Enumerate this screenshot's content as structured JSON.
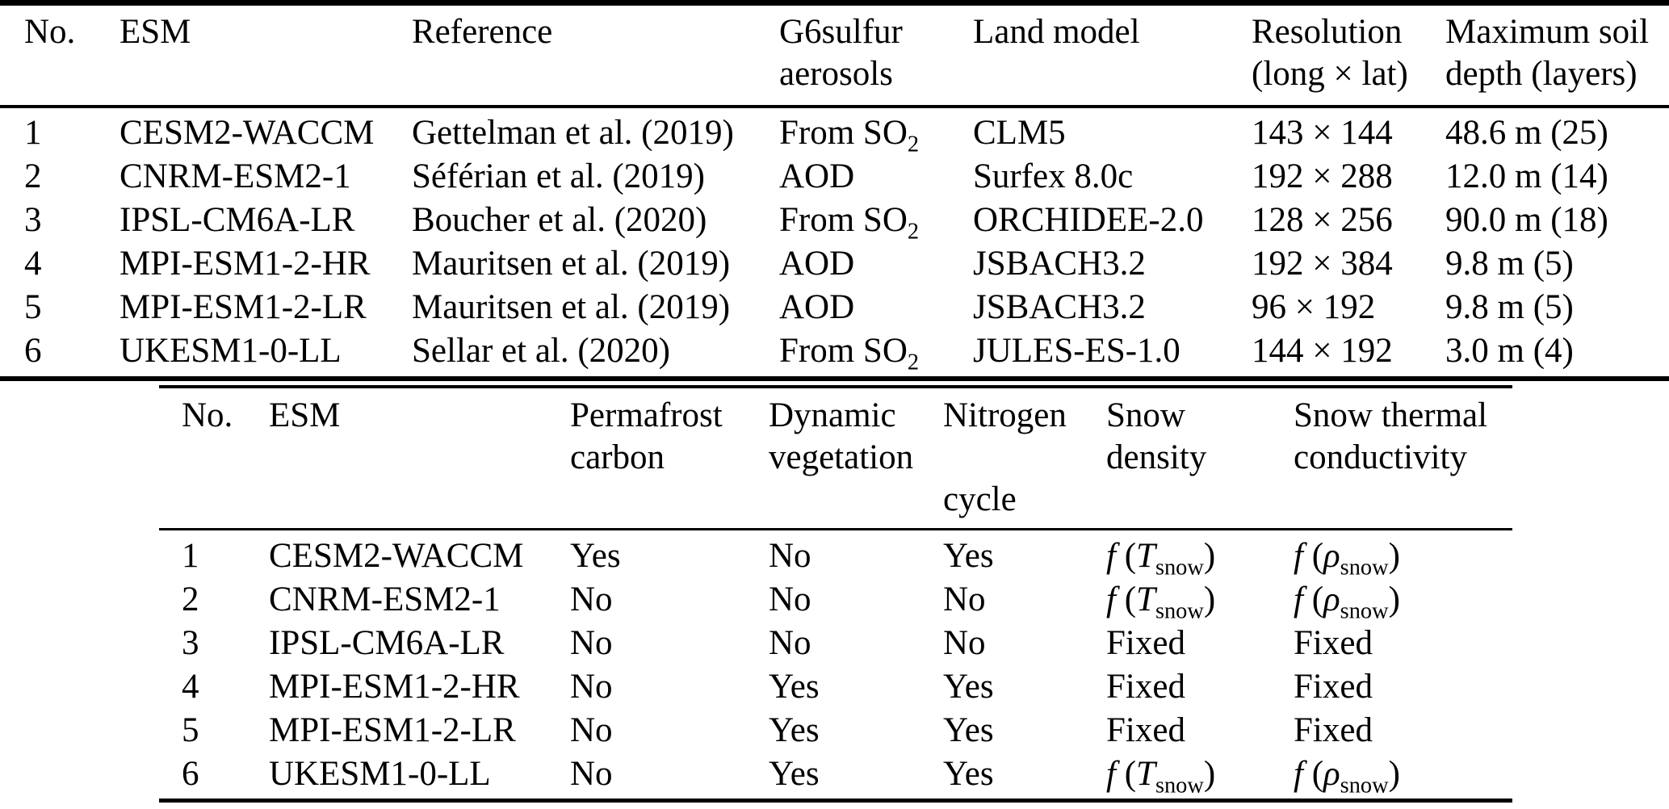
{
  "table1": {
    "col_headers": {
      "no": "No.",
      "esm": "ESM",
      "reference": "Reference",
      "g6sulfur_line1": "G6sulfur",
      "g6sulfur_line2": "aerosols",
      "land_model": "Land model",
      "resolution_line1": "Resolution",
      "resolution_line2": "(long × lat)",
      "max_soil_line1": "Maximum soil",
      "max_soil_line2": "depth (layers)"
    },
    "rows": [
      {
        "no": "1",
        "esm": "CESM2-WACCM",
        "reference": "Gettelman et al. (2019)",
        "g6sulfur": "From SO_{2}",
        "land_model": "CLM5",
        "resolution": "143 × 144",
        "max_soil_depth": "48.6 m (25)"
      },
      {
        "no": "2",
        "esm": "CNRM-ESM2-1",
        "reference": "Séférian et al. (2019)",
        "g6sulfur": "AOD",
        "land_model": "Surfex 8.0c",
        "resolution": "192 × 288",
        "max_soil_depth": "12.0 m (14)"
      },
      {
        "no": "3",
        "esm": "IPSL-CM6A-LR",
        "reference": "Boucher et al. (2020)",
        "g6sulfur": "From SO_{2}",
        "land_model": "ORCHIDEE-2.0",
        "resolution": "128 × 256",
        "max_soil_depth": "90.0 m (18)"
      },
      {
        "no": "4",
        "esm": "MPI-ESM1-2-HR",
        "reference": "Mauritsen et al. (2019)",
        "g6sulfur": "AOD",
        "land_model": "JSBACH3.2",
        "resolution": "192 × 384",
        "max_soil_depth": "9.8 m (5)"
      },
      {
        "no": "5",
        "esm": "MPI-ESM1-2-LR",
        "reference": "Mauritsen et al. (2019)",
        "g6sulfur": "AOD",
        "land_model": "JSBACH3.2",
        "resolution": "96 × 192",
        "max_soil_depth": "9.8 m (5)"
      },
      {
        "no": "6",
        "esm": "UKESM1-0-LL",
        "reference": "Sellar et al. (2020)",
        "g6sulfur": "From SO_{2}",
        "land_model": "JULES-ES-1.0",
        "resolution": "144 × 192",
        "max_soil_depth": "3.0 m (4)"
      }
    ]
  },
  "table2": {
    "col_headers": {
      "no": "No.",
      "esm": "ESM",
      "permafrost_line1": "Permafrost",
      "permafrost_line2": "carbon",
      "dynamic_line1": "Dynamic",
      "dynamic_line2": "vegetation",
      "nitrogen_line1": "Nitrogen",
      "nitrogen_line3": "cycle",
      "snow_density_line1": "Snow",
      "snow_density_line2": "density",
      "snow_thermal_line1": "Snow thermal",
      "snow_thermal_line2": "conductivity"
    },
    "rows": [
      {
        "no": "1",
        "esm": "CESM2-WACCM",
        "permafrost_carbon": "Yes",
        "dynamic_vegetation": "No",
        "nitrogen_cycle": "Yes",
        "snow_density": "*f* (*T*_{snow})",
        "snow_thermal_conductivity": "*f* (*ρ*_{snow})"
      },
      {
        "no": "2",
        "esm": "CNRM-ESM2-1",
        "permafrost_carbon": "No",
        "dynamic_vegetation": "No",
        "nitrogen_cycle": "No",
        "snow_density": "*f* (*T*_{snow})",
        "snow_thermal_conductivity": "*f* (*ρ*_{snow})"
      },
      {
        "no": "3",
        "esm": "IPSL-CM6A-LR",
        "permafrost_carbon": "No",
        "dynamic_vegetation": "No",
        "nitrogen_cycle": "No",
        "snow_density": "Fixed",
        "snow_thermal_conductivity": "Fixed"
      },
      {
        "no": "4",
        "esm": "MPI-ESM1-2-HR",
        "permafrost_carbon": "No",
        "dynamic_vegetation": "Yes",
        "nitrogen_cycle": "Yes",
        "snow_density": "Fixed",
        "snow_thermal_conductivity": "Fixed"
      },
      {
        "no": "5",
        "esm": "MPI-ESM1-2-LR",
        "permafrost_carbon": "No",
        "dynamic_vegetation": "Yes",
        "nitrogen_cycle": "Yes",
        "snow_density": "Fixed",
        "snow_thermal_conductivity": "Fixed"
      },
      {
        "no": "6",
        "esm": "UKESM1-0-LL",
        "permafrost_carbon": "No",
        "dynamic_vegetation": "Yes",
        "nitrogen_cycle": "Yes",
        "snow_density": "*f* (*T*_{snow})",
        "snow_thermal_conductivity": "*f* (*ρ*_{snow})"
      }
    ]
  }
}
